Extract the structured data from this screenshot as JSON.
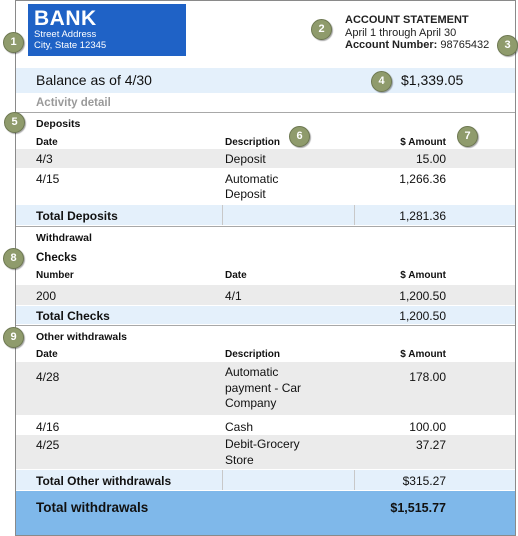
{
  "bank": {
    "name": "BANK",
    "street": "Street Address",
    "city": "City, State 12345"
  },
  "statement": {
    "title": "ACCOUNT STATEMENT",
    "period": "April 1 through April 30",
    "account_label": "Account Number:",
    "account_number": "98765432"
  },
  "balance": {
    "label": "Balance as of 4/30",
    "value": "$1,339.05"
  },
  "activity_label": "Activity detail",
  "deposits": {
    "title": "Deposits",
    "headers": {
      "date": "Date",
      "description": "Description",
      "amount": "$ Amount"
    },
    "rows": [
      {
        "date": "4/3",
        "description": "Deposit",
        "amount": "15.00"
      },
      {
        "date": "4/15",
        "description": "Automatic Deposit",
        "amount": "1,266.36"
      }
    ],
    "total_label": "Total Deposits",
    "total": "1,281.36"
  },
  "withdrawal": {
    "title": "Withdrawal"
  },
  "checks": {
    "title": "Checks",
    "headers": {
      "number": "Number",
      "date": "Date",
      "amount": "$ Amount"
    },
    "rows": [
      {
        "number": "200",
        "date": "4/1",
        "amount": "1,200.50"
      }
    ],
    "total_label": "Total Checks",
    "total": "1,200.50"
  },
  "other": {
    "title": "Other withdrawals",
    "headers": {
      "date": "Date",
      "description": "Description",
      "amount": "$ Amount"
    },
    "rows": [
      {
        "date": "4/28",
        "description": "Automatic payment - Car Company",
        "amount": "178.00"
      },
      {
        "date": "4/16",
        "description": "Cash",
        "amount": "100.00"
      },
      {
        "date": "4/25",
        "description": "Debit-Grocery Store",
        "amount": "37.27"
      }
    ],
    "total_label": "Total Other withdrawals",
    "total": "$315.27"
  },
  "total_withdrawals": {
    "label": "Total withdrawals",
    "value": "$1,515.77"
  },
  "callouts": [
    "1",
    "2",
    "3",
    "4",
    "5",
    "6",
    "7",
    "8",
    "9"
  ],
  "colors": {
    "logo": "#1f62c6",
    "light_band": "#e4f0fb",
    "gray_row": "#ebebeb",
    "total_band": "#7fb8ea",
    "badge": "#8f9b6c"
  }
}
